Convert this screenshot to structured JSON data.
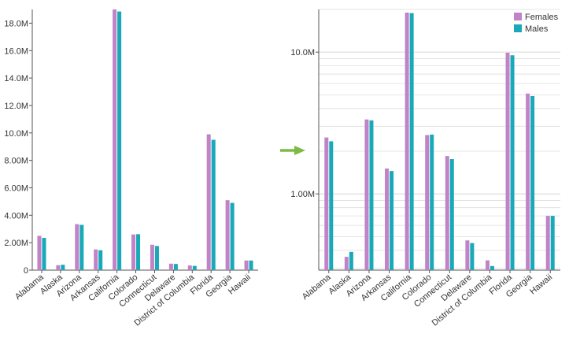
{
  "colors": {
    "females": "#c083c7",
    "males": "#1aa9b8",
    "arrow": "#7dbb43",
    "axis": "#555555",
    "grid": "#dddddd"
  },
  "chart_data": [
    {
      "type": "bar",
      "scale": "linear",
      "categories": [
        "Alabama",
        "Alaska",
        "Arizona",
        "Arkansas",
        "California",
        "Colorado",
        "Connecticut",
        "Delaware",
        "District of Columbia",
        "Florida",
        "Georgia",
        "Hawaii"
      ],
      "series": [
        {
          "name": "Females",
          "values": [
            2500000,
            360000,
            3350000,
            1510000,
            19000000,
            2600000,
            1850000,
            470000,
            340000,
            9900000,
            5100000,
            700000
          ]
        },
        {
          "name": "Males",
          "values": [
            2350000,
            390000,
            3300000,
            1450000,
            18850000,
            2620000,
            1760000,
            450000,
            310000,
            9500000,
            4900000,
            700000
          ]
        }
      ],
      "ylim": [
        0,
        19000000
      ],
      "yticks": [
        0,
        2000000,
        4000000,
        6000000,
        8000000,
        10000000,
        12000000,
        14000000,
        16000000,
        18000000
      ],
      "ytick_labels": [
        "0",
        "2.00M",
        "4.00M",
        "6.00M",
        "8.00M",
        "10.0M",
        "12.0M",
        "14.0M",
        "16.0M",
        "18.0M"
      ],
      "grid": false,
      "legend": false,
      "title": "",
      "xlabel": "",
      "ylabel": ""
    },
    {
      "type": "bar",
      "scale": "log",
      "categories": [
        "Alabama",
        "Alaska",
        "Arizona",
        "Arkansas",
        "California",
        "Colorado",
        "Connecticut",
        "Delaware",
        "District of Columbia",
        "Florida",
        "Georgia",
        "Hawaii"
      ],
      "series": [
        {
          "name": "Females",
          "values": [
            2500000,
            360000,
            3350000,
            1510000,
            19000000,
            2600000,
            1850000,
            470000,
            340000,
            9900000,
            5100000,
            700000
          ]
        },
        {
          "name": "Males",
          "values": [
            2350000,
            390000,
            3300000,
            1450000,
            18850000,
            2620000,
            1760000,
            450000,
            310000,
            9500000,
            4900000,
            700000
          ]
        }
      ],
      "ylim": [
        290000,
        20000000
      ],
      "yticks": [
        1000000,
        10000000
      ],
      "ytick_labels": [
        "1.00M",
        "10.0M"
      ],
      "grid": true,
      "legend": "top-right",
      "title": "",
      "xlabel": "",
      "ylabel": ""
    }
  ]
}
